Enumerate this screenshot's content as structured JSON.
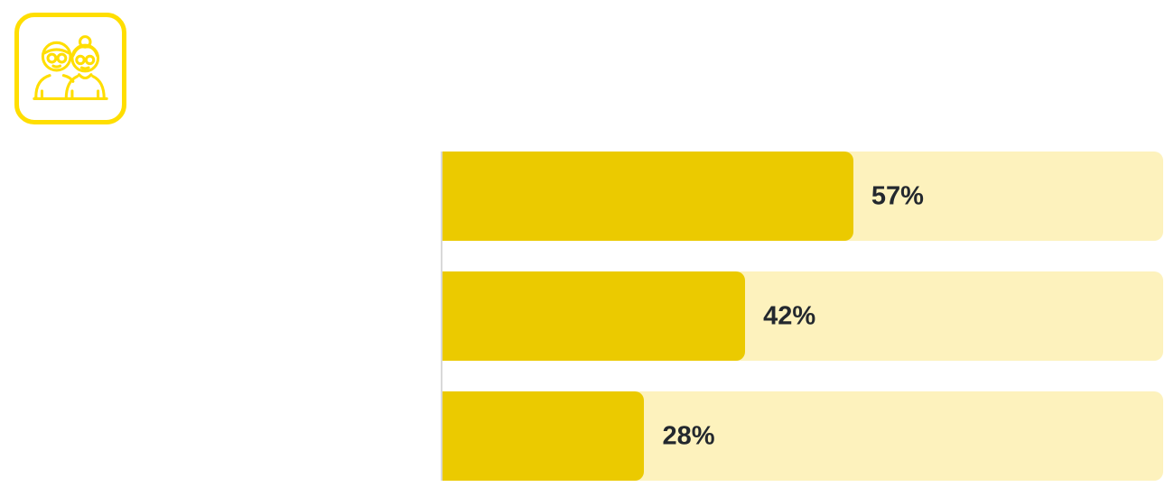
{
  "icon": {
    "name": "elderly-couple-icon",
    "stroke_color": "#FFDE00"
  },
  "colors": {
    "bar_fill": "#EBCA00",
    "bar_track": "#FDF2BD",
    "label_text": "#23282E",
    "axis_line": "#D9D9D9",
    "background": "#FFFFFF"
  },
  "chart_data": {
    "type": "bar",
    "orientation": "horizontal",
    "values": [
      57,
      42,
      28
    ],
    "labels": [
      "57%",
      "42%",
      "28%"
    ],
    "xlim": [
      0,
      100
    ],
    "title": "",
    "xlabel": "",
    "ylabel": "",
    "grid": false,
    "legend": false,
    "bar_color": "#EBCA00",
    "track_color": "#FDF2BD",
    "label_placement": "right-of-fill"
  }
}
